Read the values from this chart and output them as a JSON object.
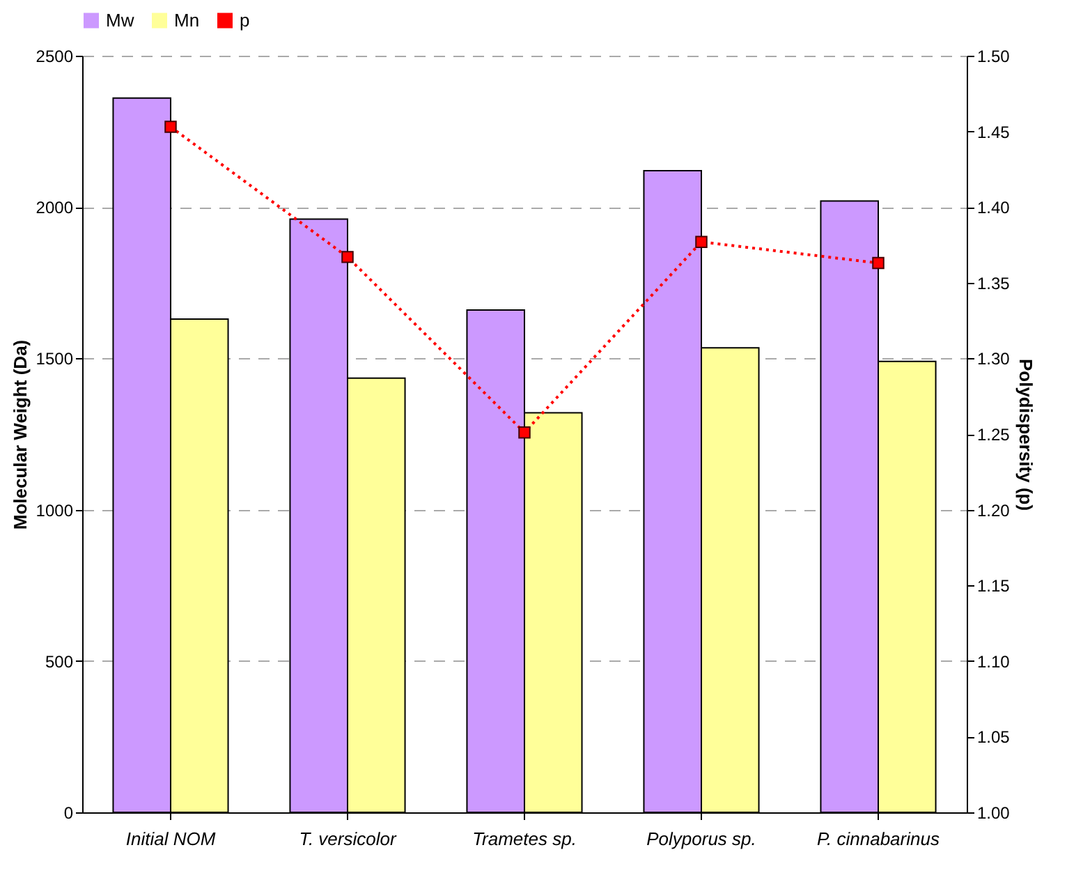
{
  "chart_data": {
    "type": "bar",
    "categories": [
      "Initial NOM",
      "T. versicolor",
      "Trametes sp.",
      "Polyporus sp.",
      "P. cinnabarinus"
    ],
    "ylabel": "Molecular Weight (Da)",
    "y2label": "Polydispersity (p)",
    "series": [
      {
        "name": "Mw",
        "color": "#cc99ff",
        "values": [
          2360,
          1960,
          1660,
          2120,
          2020
        ]
      },
      {
        "name": "Mn",
        "color": "#ffff99",
        "values": [
          1630,
          1435,
          1320,
          1535,
          1490
        ]
      },
      {
        "name": "p",
        "type": "line",
        "axis": "y2",
        "color": "#ff0000",
        "marker": "square",
        "line_style": "dotted",
        "values": [
          1.453,
          1.367,
          1.251,
          1.377,
          1.363
        ]
      }
    ],
    "ylim": [
      0,
      2500
    ],
    "yticks": [
      0,
      500,
      1000,
      1500,
      2000,
      2500
    ],
    "y2lim": [
      1,
      1.5
    ],
    "y2ticks": [
      {
        "value": 1,
        "label": "1.00"
      },
      {
        "value": 1.05,
        "label": "1.05"
      },
      {
        "value": 1.1,
        "label": "1.10"
      },
      {
        "value": 1.15,
        "label": "1.15"
      },
      {
        "value": 1.2,
        "label": "1.20"
      },
      {
        "value": 1.25,
        "label": "1.25"
      },
      {
        "value": 1.3,
        "label": "1.30"
      },
      {
        "value": 1.35,
        "label": "1.35"
      },
      {
        "value": 1.4,
        "label": "1.40"
      },
      {
        "value": 1.45,
        "label": "1.45"
      },
      {
        "value": 1.5,
        "label": "1.50"
      }
    ],
    "grid": "y",
    "legend": "top"
  }
}
